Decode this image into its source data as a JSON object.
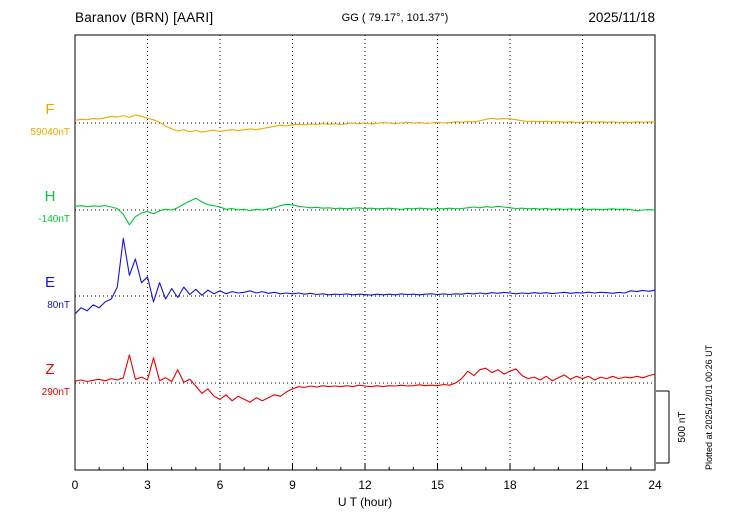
{
  "header": {
    "station": "Baranov (BRN)  [AARI]",
    "coords": "GG ( 79.17°, 101.37°)",
    "date": "2025/11/18"
  },
  "scale_bar": {
    "label": "500 nT",
    "nT": 500
  },
  "footer_note": "Plotted at 2025/12/01 00:26 UT",
  "chart_data": {
    "type": "line",
    "title": "Baranov (BRN) [AARI] magnetogram 2025/11/18",
    "xlabel": "U T (hour)",
    "x_range": [
      0,
      24
    ],
    "x_ticks": [
      0,
      3,
      6,
      9,
      12,
      15,
      18,
      21,
      24
    ],
    "sample_step_hours": 0.25,
    "scale_nT_per_bar": 500,
    "series": [
      {
        "name": "F",
        "baseline_label": "59040nT",
        "color": "#f0a800",
        "offsets_nT": [
          18,
          25,
          22,
          30,
          28,
          35,
          45,
          40,
          50,
          38,
          55,
          45,
          32,
          22,
          5,
          -20,
          -40,
          -55,
          -45,
          -60,
          -50,
          -62,
          -55,
          -48,
          -58,
          -50,
          -45,
          -52,
          -45,
          -40,
          -45,
          -38,
          -30,
          -22,
          -15,
          -20,
          -12,
          -8,
          -12,
          -6,
          -10,
          -4,
          -9,
          -5,
          -10,
          -5,
          0,
          -5,
          0,
          -6,
          -2,
          3,
          0,
          -5,
          0,
          5,
          0,
          3,
          -3,
          0,
          5,
          0,
          3,
          8,
          5,
          10,
          8,
          15,
          25,
          32,
          26,
          30,
          28,
          22,
          15,
          10,
          12,
          8,
          12,
          6,
          10,
          5,
          8,
          3,
          6,
          10,
          5,
          8,
          4,
          8,
          3,
          6,
          4,
          8,
          5,
          8,
          6
        ]
      },
      {
        "name": "H",
        "baseline_label": "-140nT",
        "color": "#00c832",
        "offsets_nT": [
          25,
          30,
          22,
          28,
          25,
          30,
          20,
          10,
          -30,
          -100,
          -45,
          -20,
          -10,
          -25,
          -5,
          5,
          0,
          15,
          40,
          60,
          80,
          55,
          35,
          30,
          20,
          5,
          10,
          0,
          5,
          -5,
          5,
          0,
          8,
          15,
          30,
          38,
          35,
          25,
          20,
          15,
          18,
          12,
          15,
          10,
          12,
          8,
          12,
          15,
          10,
          12,
          8,
          10,
          12,
          8,
          5,
          10,
          8,
          12,
          10,
          6,
          10,
          8,
          12,
          8,
          10,
          15,
          20,
          15,
          22,
          18,
          25,
          20,
          15,
          10,
          12,
          8,
          10,
          6,
          10,
          5,
          8,
          4,
          8,
          5,
          8,
          3,
          6,
          2,
          5,
          8,
          4,
          6,
          2,
          -5,
          0,
          3,
          0
        ]
      },
      {
        "name": "E",
        "baseline_label": "80nT",
        "color": "#1414d2",
        "offsets_nT": [
          -120,
          -80,
          -100,
          -60,
          -80,
          -40,
          -20,
          60,
          390,
          140,
          250,
          90,
          130,
          -40,
          90,
          -20,
          50,
          -10,
          60,
          10,
          45,
          5,
          40,
          15,
          35,
          15,
          30,
          20,
          25,
          35,
          20,
          30,
          18,
          25,
          15,
          20,
          15,
          20,
          12,
          18,
          10,
          15,
          8,
          12,
          10,
          14,
          8,
          12,
          10,
          6,
          12,
          8,
          12,
          8,
          14,
          10,
          12,
          8,
          12,
          15,
          10,
          14,
          10,
          15,
          12,
          18,
          14,
          20,
          15,
          22,
          18,
          24,
          20,
          15,
          20,
          16,
          22,
          18,
          22,
          16,
          20,
          25,
          18,
          22,
          20,
          26,
          20,
          25,
          22,
          18,
          24,
          20,
          35,
          30,
          38,
          32,
          40
        ]
      },
      {
        "name": "Z",
        "baseline_label": "290nT",
        "color": "#e80000",
        "offsets_nT": [
          12,
          20,
          10,
          18,
          25,
          15,
          30,
          20,
          35,
          190,
          25,
          40,
          20,
          170,
          15,
          35,
          10,
          90,
          5,
          25,
          -20,
          -70,
          -40,
          -90,
          -110,
          -80,
          -120,
          -90,
          -110,
          -130,
          -100,
          -120,
          -100,
          -80,
          -90,
          -60,
          -40,
          -25,
          -30,
          -20,
          -28,
          -18,
          -25,
          -20,
          -25,
          -18,
          -24,
          -15,
          -20,
          -25,
          -18,
          -24,
          -18,
          -20,
          -15,
          -20,
          -18,
          -12,
          -18,
          -15,
          -18,
          -10,
          -15,
          0,
          30,
          80,
          50,
          90,
          100,
          70,
          90,
          60,
          80,
          95,
          50,
          30,
          40,
          20,
          45,
          15,
          35,
          55,
          25,
          45,
          30,
          45,
          20,
          40,
          30,
          45,
          30,
          40,
          35,
          45,
          35,
          50,
          60
        ]
      }
    ]
  }
}
